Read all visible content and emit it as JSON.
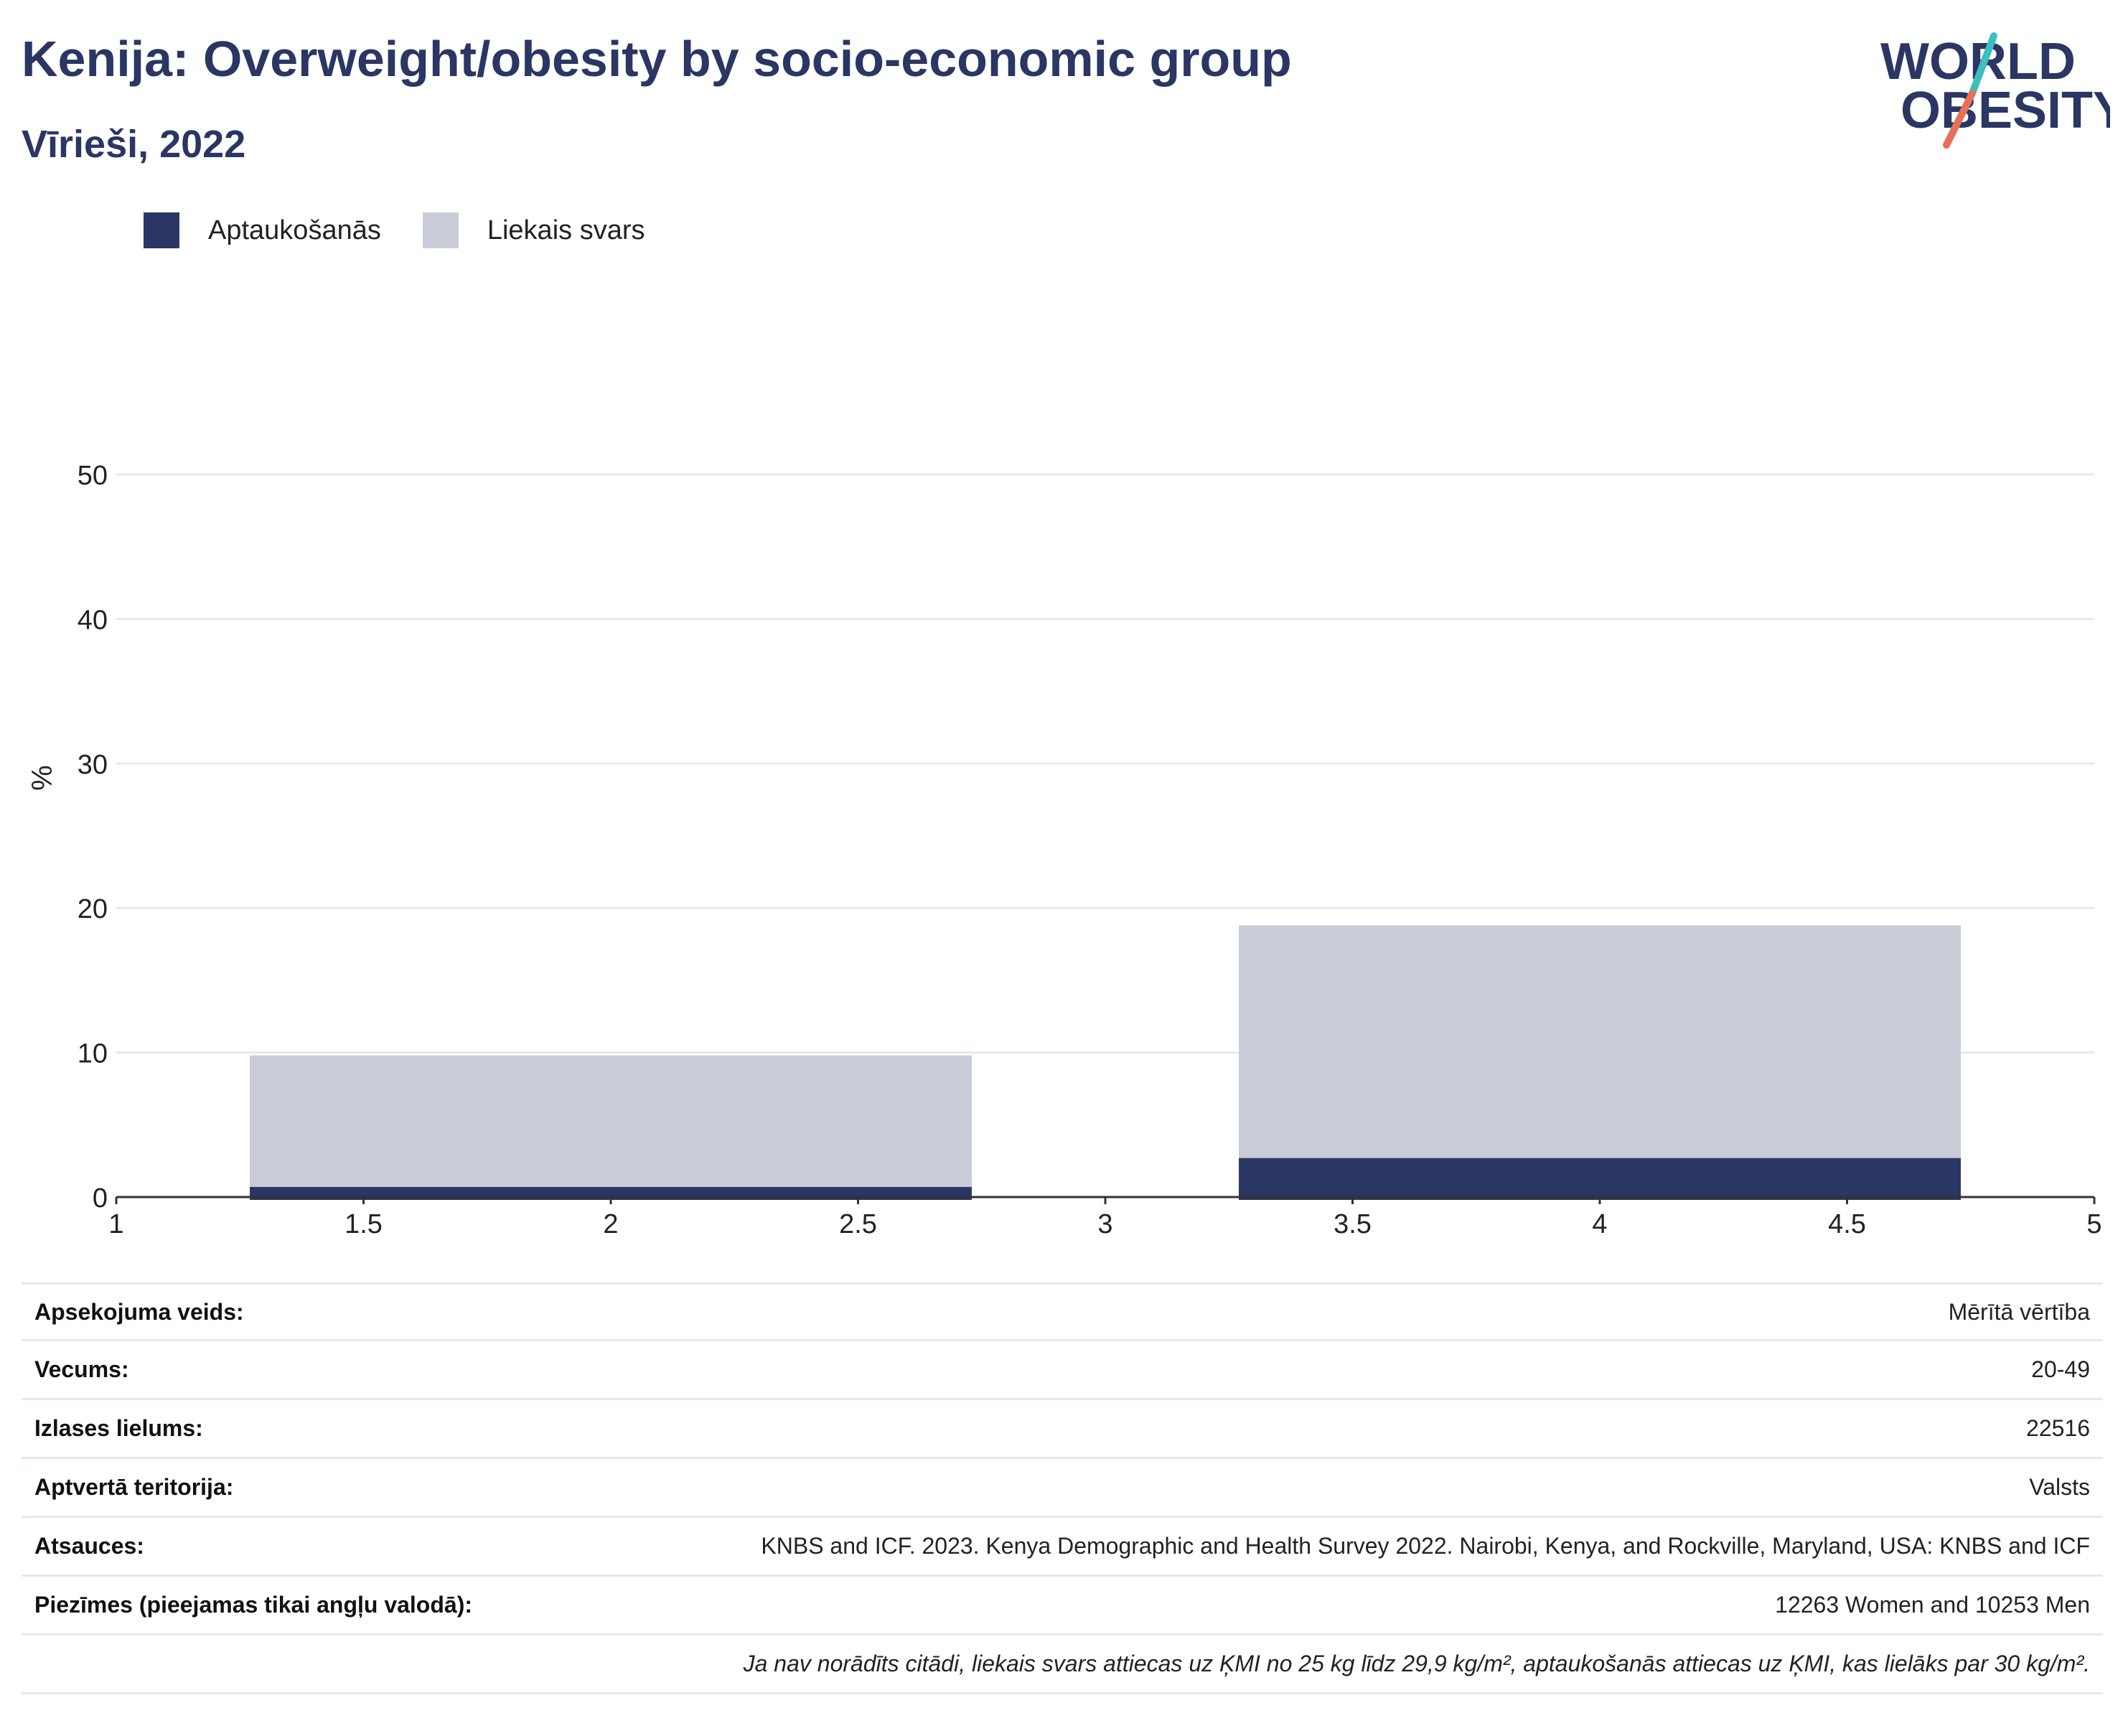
{
  "header": {
    "title": "Kenija: Overweight/obesity by socio-economic group",
    "subtitle": "Vīrieši, 2022"
  },
  "logo": {
    "line1": "WORLD",
    "line2": "OBESITY"
  },
  "colors": {
    "obesity": "#2a3663",
    "overweight": "#c9ccd7",
    "title": "#2a3663",
    "grid": "#e6e9ef",
    "axis": "#333333"
  },
  "legend": {
    "items": [
      {
        "label": "Aptaukošanās",
        "color": "#2a3663"
      },
      {
        "label": "Liekais svars",
        "color": "#c9ccd7"
      }
    ]
  },
  "chart_data": {
    "type": "bar",
    "stacked": true,
    "ylabel": "%",
    "xlim": [
      1,
      5
    ],
    "ylim": [
      0,
      58
    ],
    "xticks": [
      "1",
      "1.5",
      "2",
      "2.5",
      "3",
      "3.5",
      "4",
      "4.5",
      "5"
    ],
    "yticks": [
      "0",
      "10",
      "20",
      "30",
      "40",
      "50"
    ],
    "grid": true,
    "legend_position": "top-left",
    "bars": [
      {
        "x_start": 1.27,
        "x_end": 2.73,
        "obesity": 0.7,
        "overweight": 9.1
      },
      {
        "x_start": 3.27,
        "x_end": 4.73,
        "obesity": 2.7,
        "overweight": 16.1
      }
    ],
    "series": [
      {
        "name": "Aptaukošanās"
      },
      {
        "name": "Liekais svars"
      }
    ]
  },
  "info": {
    "rows": [
      {
        "label": "Apsekojuma veids:",
        "value": "Mērītā vērtība"
      },
      {
        "label": "Vecums:",
        "value": "20-49"
      },
      {
        "label": "Izlases lielums:",
        "value": "22516"
      },
      {
        "label": "Aptvertā teritorija:",
        "value": "Valsts"
      },
      {
        "label": "Atsauces:",
        "value": "KNBS and ICF. 2023. Kenya Demographic and Health Survey 2022. Nairobi, Kenya, and Rockville, Maryland, USA: KNBS and ICF"
      },
      {
        "label": "Piezīmes (pieejamas tikai angļu valodā):",
        "value": "12263 Women and 10253 Men"
      }
    ],
    "note": "Ja nav norādīts citādi, liekais svars attiecas uz ĶMI no 25 kg līdz 29,9 kg/m², aptaukošanās attiecas uz ĶMI, kas lielāks par 30 kg/m²."
  }
}
